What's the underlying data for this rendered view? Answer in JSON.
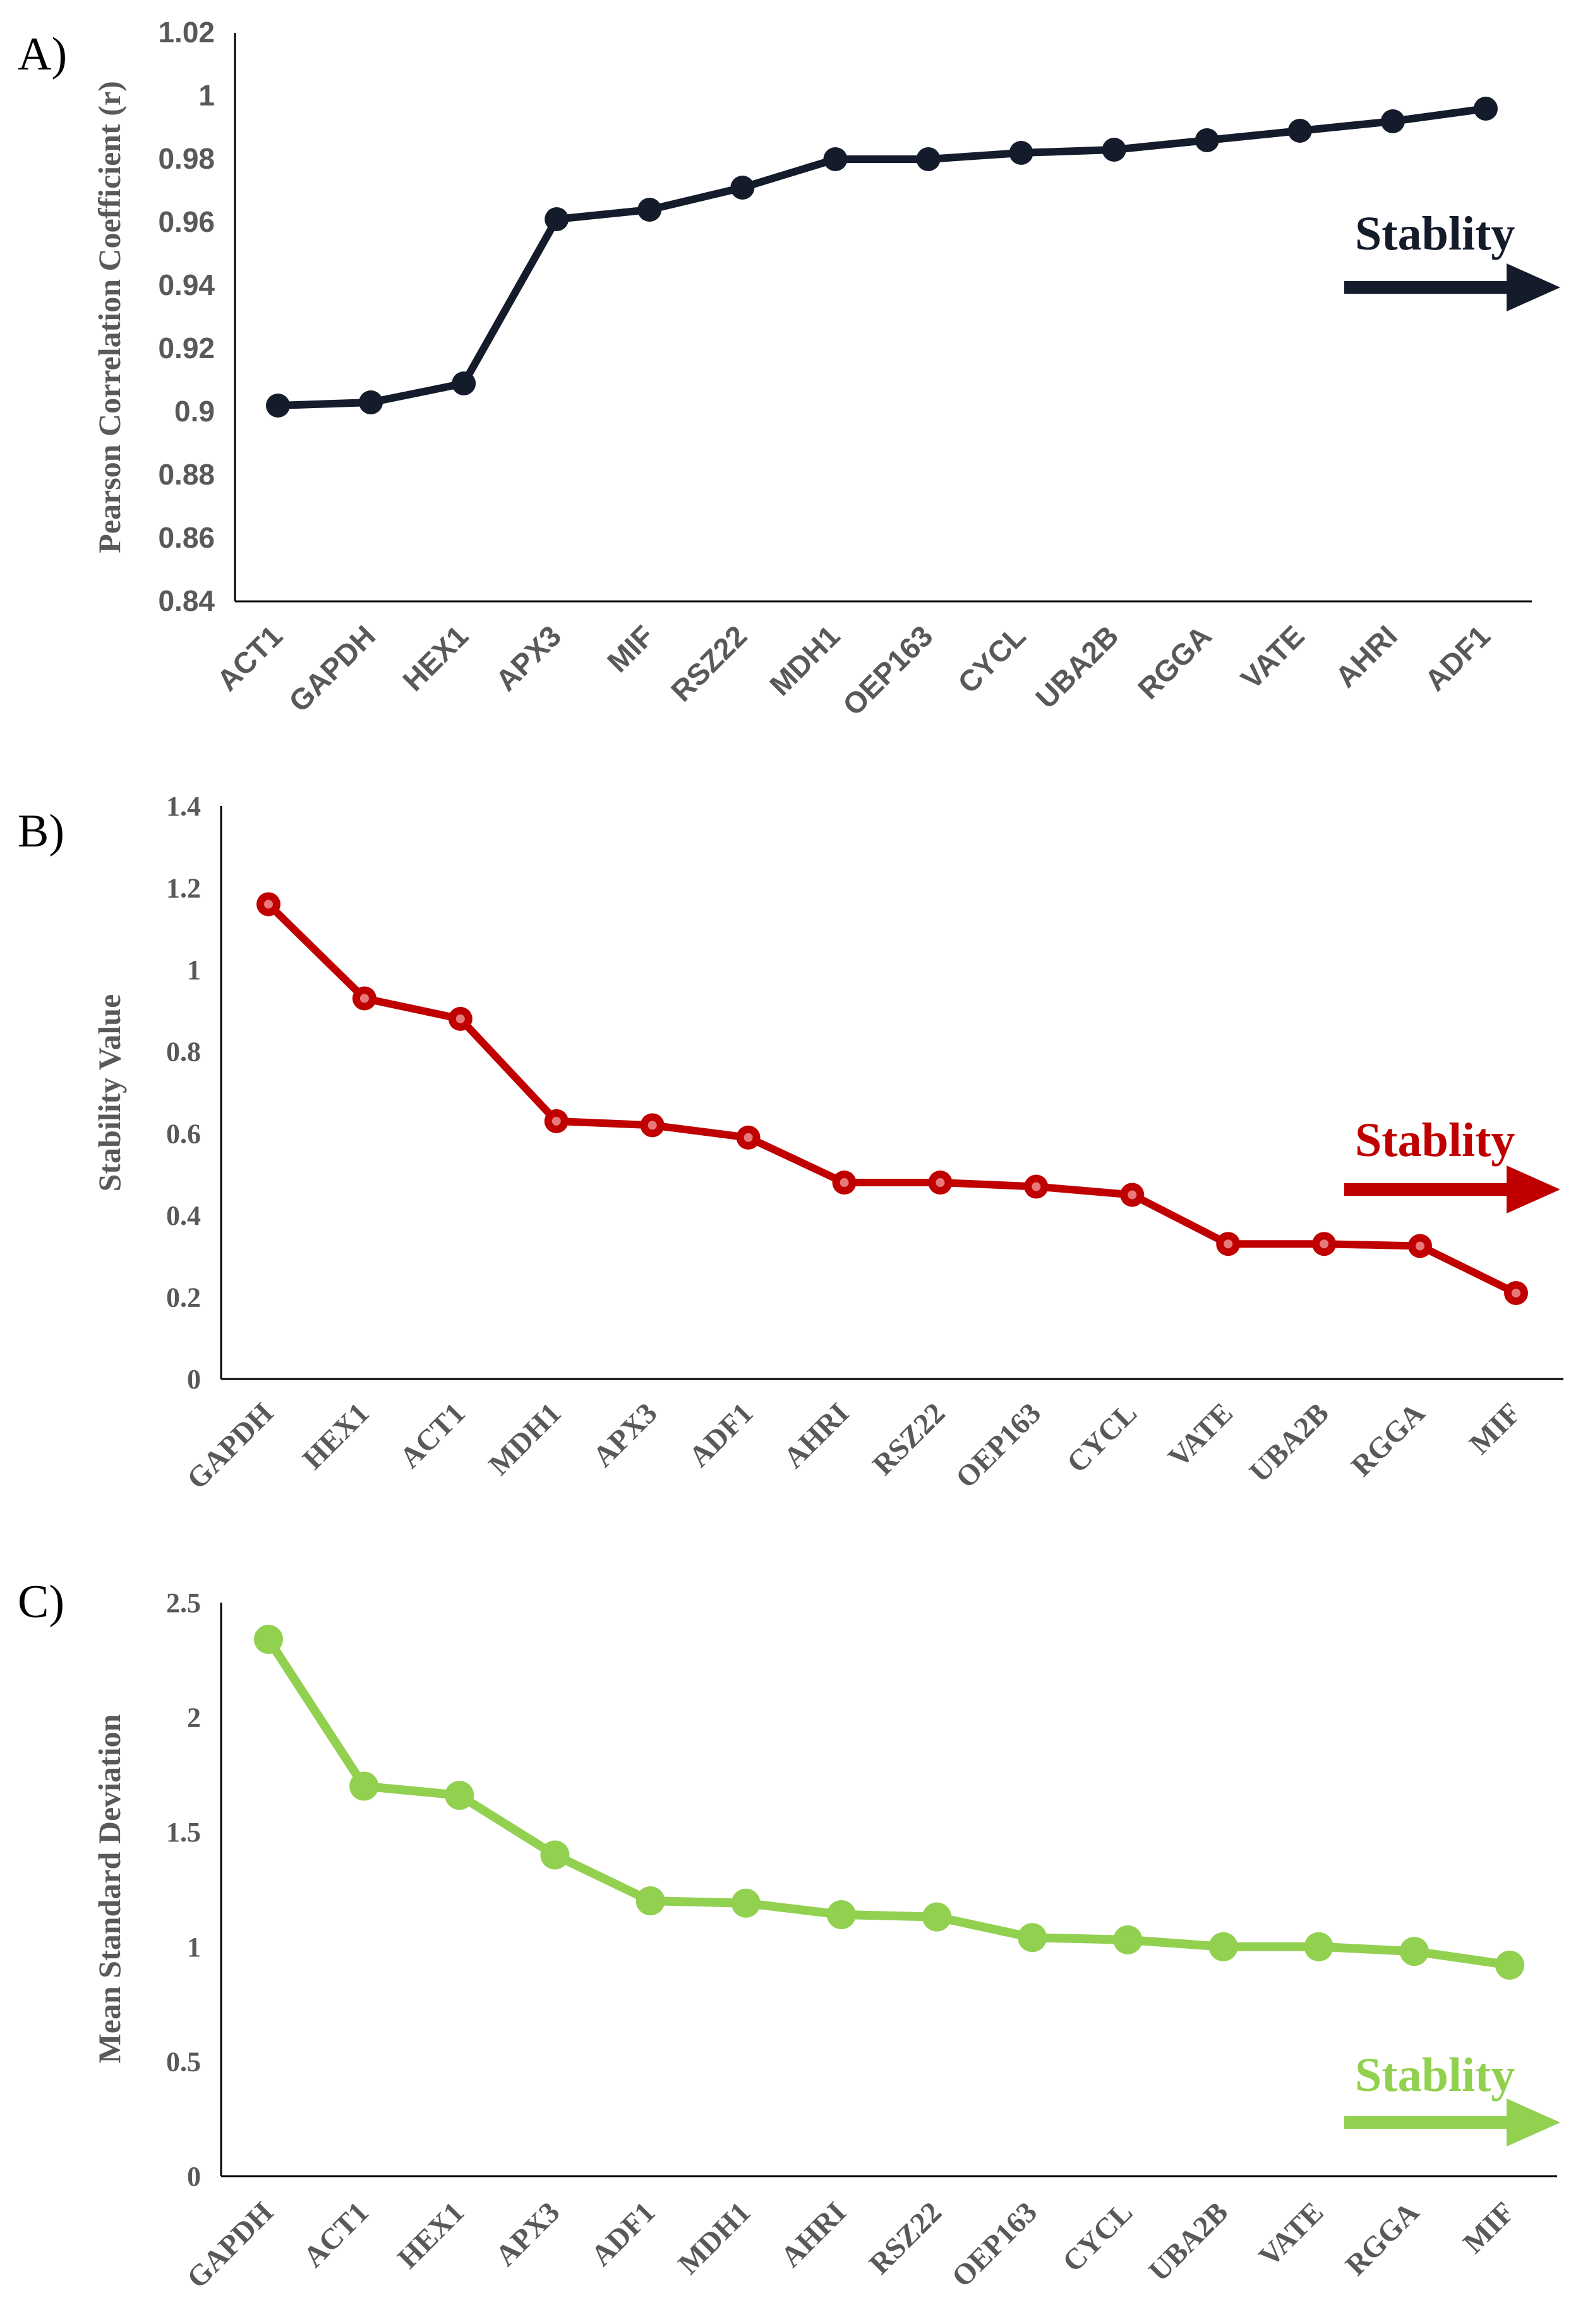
{
  "chart_data": [
    {
      "panel": "A)",
      "type": "line",
      "ylabel": "Pearson Correlation Coefficient (r)",
      "ylim": [
        0.84,
        1.02
      ],
      "yticks": [
        "0.84",
        "0.86",
        "0.88",
        "0.9",
        "0.92",
        "0.94",
        "0.96",
        "0.98",
        "1",
        "1.02"
      ],
      "categories": [
        "ACT1",
        "GAPDH",
        "HEX1",
        "APX3",
        "MIF",
        "RSZ22",
        "MDH1",
        "OEP163",
        "CYCL",
        "UBA2B",
        "RGGA",
        "VATE",
        "AHRI",
        "ADF1"
      ],
      "values": [
        0.902,
        0.903,
        0.909,
        0.961,
        0.964,
        0.971,
        0.98,
        0.98,
        0.982,
        0.983,
        0.986,
        0.989,
        0.992,
        0.996
      ],
      "color": "#141c2b",
      "annotation": "Stablity",
      "annotation_color": "#141c2b"
    },
    {
      "panel": "B)",
      "type": "line",
      "ylabel": "Stability Value",
      "ylim": [
        0,
        1.4
      ],
      "yticks": [
        "0",
        "0.2",
        "0.4",
        "0.6",
        "0.8",
        "1",
        "1.2",
        "1.4"
      ],
      "categories": [
        "GAPDH",
        "HEX1",
        "ACT1",
        "MDH1",
        "APX3",
        "ADF1",
        "AHRI",
        "RSZ22",
        "OEP163",
        "CYCL",
        "VATE",
        "UBA2B",
        "RGGA",
        "MIF"
      ],
      "values": [
        1.16,
        0.93,
        0.88,
        0.63,
        0.62,
        0.59,
        0.48,
        0.48,
        0.47,
        0.45,
        0.33,
        0.33,
        0.325,
        0.21
      ],
      "color": "#c00000",
      "annotation": "Stablity",
      "annotation_color": "#c00000"
    },
    {
      "panel": "C)",
      "type": "line",
      "ylabel": "Mean Standard Deviation",
      "ylim": [
        0,
        2.5
      ],
      "yticks": [
        "0",
        "0.5",
        "1",
        "1.5",
        "2",
        "2.5"
      ],
      "categories": [
        "GAPDH",
        "ACT1",
        "HEX1",
        "APX3",
        "ADF1",
        "MDH1",
        "AHRI",
        "RSZ22",
        "OEP163",
        "CYCL",
        "UBA2B",
        "VATE",
        "RGGA",
        "MIF"
      ],
      "values": [
        2.34,
        1.7,
        1.66,
        1.4,
        1.2,
        1.19,
        1.14,
        1.13,
        1.04,
        1.03,
        1.0,
        1.0,
        0.98,
        0.92
      ],
      "color": "#92d050",
      "annotation": "Stablity",
      "annotation_color": "#92d050"
    }
  ]
}
